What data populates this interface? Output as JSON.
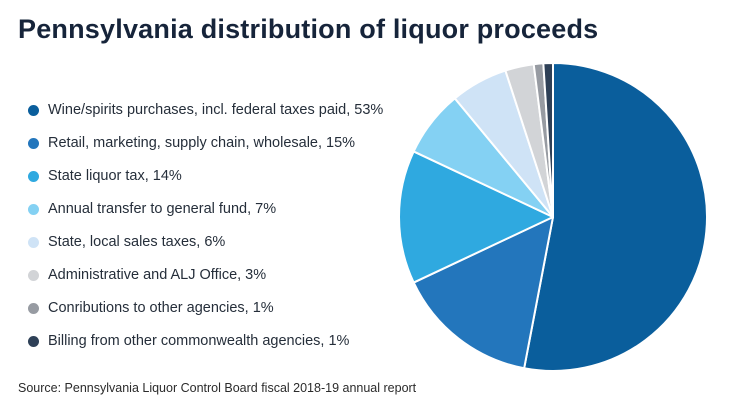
{
  "title": "Pennsylvania distribution of liquor proceeds",
  "source": "Source: Pennsylvania Liquor Control Board fiscal 2018-19 annual report",
  "chart_data": {
    "type": "pie",
    "title": "Pennsylvania distribution of liquor proceeds",
    "start_angle": "12 o'clock",
    "direction": "clockwise",
    "legend_position": "left",
    "stroke_color": "#ffffff",
    "slices": [
      {
        "label": "Wine/spirits purchases, incl. federal taxes paid",
        "value": 53,
        "unit": "%",
        "color": "#0a5e9c"
      },
      {
        "label": "Retail, marketing, supply chain, wholesale",
        "value": 15,
        "unit": "%",
        "color": "#2376bc"
      },
      {
        "label": "State liquor tax",
        "value": 14,
        "unit": "%",
        "color": "#2fa9e0"
      },
      {
        "label": "Annual transfer to general fund",
        "value": 7,
        "unit": "%",
        "color": "#84d1f3"
      },
      {
        "label": "State, local sales taxes",
        "value": 6,
        "unit": "%",
        "color": "#cfe3f6"
      },
      {
        "label": "Administrative and ALJ Office",
        "value": 3,
        "unit": "%",
        "color": "#d2d4d7"
      },
      {
        "label": "Conributions to other agencies",
        "value": 1,
        "unit": "%",
        "color": "#979ba2"
      },
      {
        "label": "Billing from other commonwealth agencies",
        "value": 1,
        "unit": "%",
        "color": "#2e4057"
      }
    ]
  }
}
